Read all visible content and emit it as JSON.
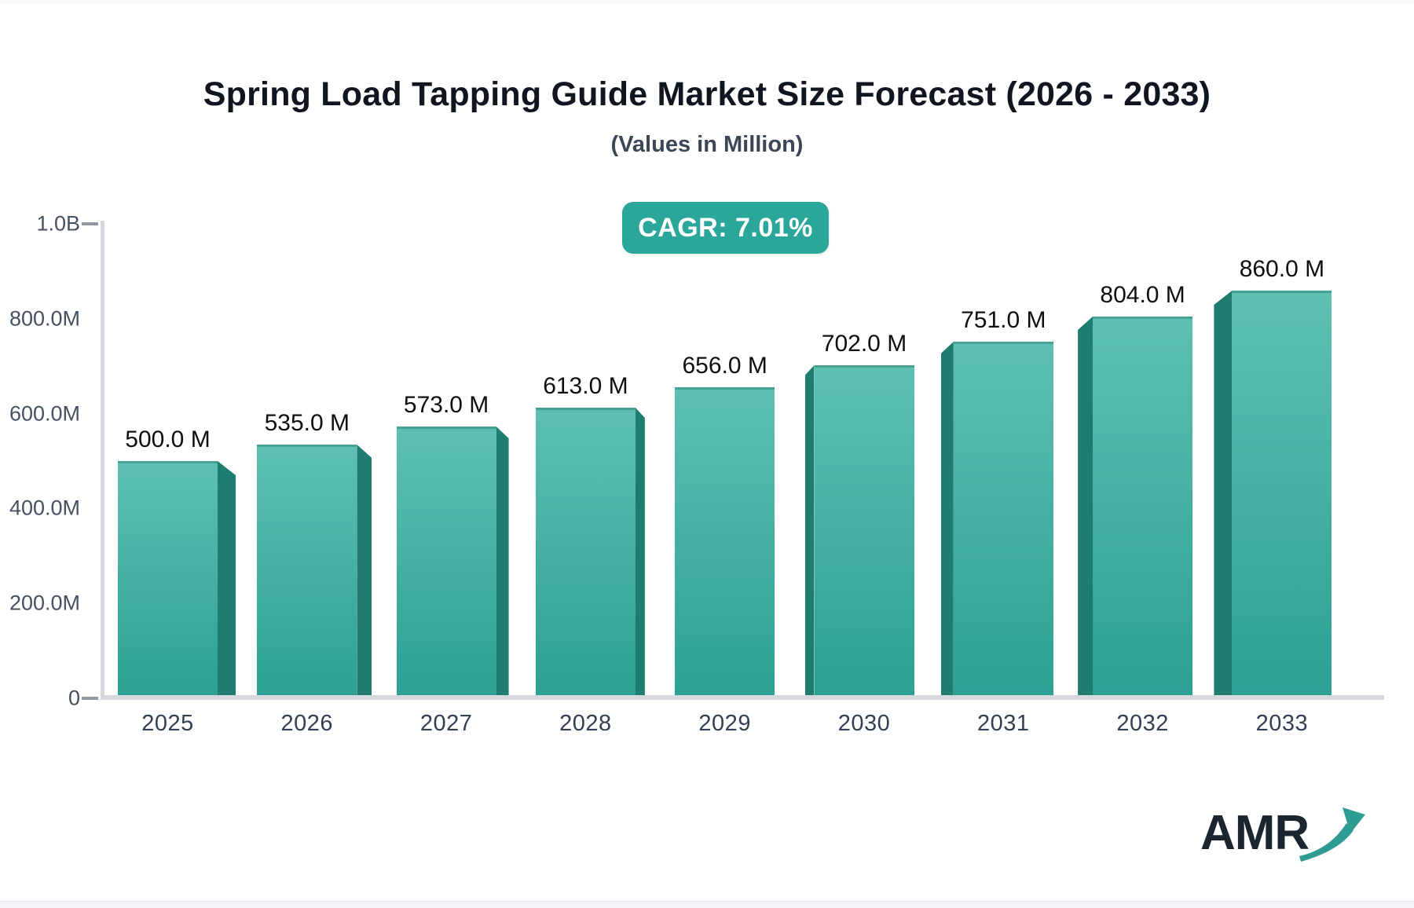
{
  "header": {
    "title": "Spring Load Tapping Guide Market Size Forecast (2026 - 2033)",
    "subtitle": "(Values in Million)"
  },
  "cagr_badge": {
    "label": "CAGR: 7.01%",
    "background": "#2aa69a",
    "text_color": "#ffffff"
  },
  "chart_data": {
    "type": "bar",
    "title": "Spring Load Tapping Guide Market Size Forecast (2026 - 2033)",
    "subtitle": "(Values in Million)",
    "categories": [
      "2025",
      "2026",
      "2027",
      "2028",
      "2029",
      "2030",
      "2031",
      "2032",
      "2033"
    ],
    "values": [
      500,
      535,
      573,
      613,
      656,
      702,
      751,
      804,
      860
    ],
    "value_labels": [
      "500.0 M",
      "535.0 M",
      "573.0 M",
      "613.0 M",
      "656.0 M",
      "702.0 M",
      "751.0 M",
      "804.0 M",
      "860.0 M"
    ],
    "y_ticks": [
      "1.0B",
      "800.0M",
      "600.0M",
      "400.0M",
      "200.0M",
      "0"
    ],
    "ylim": [
      0,
      1000
    ],
    "grid": false,
    "legend": "none",
    "bar_style": "3d-center-perspective",
    "colors": {
      "bar_face_top": "#5ec0b1",
      "bar_face_bottom": "#2ba093",
      "bar_side": "#1f7d70",
      "axis_line": "#d5d8dc",
      "tick_text": "#475062",
      "category_text": "#333f52",
      "value_text": "#0c0f13"
    }
  },
  "logo": {
    "text": "AMR",
    "arrow_color": "#2f9c93",
    "text_color": "#1a2530"
  }
}
